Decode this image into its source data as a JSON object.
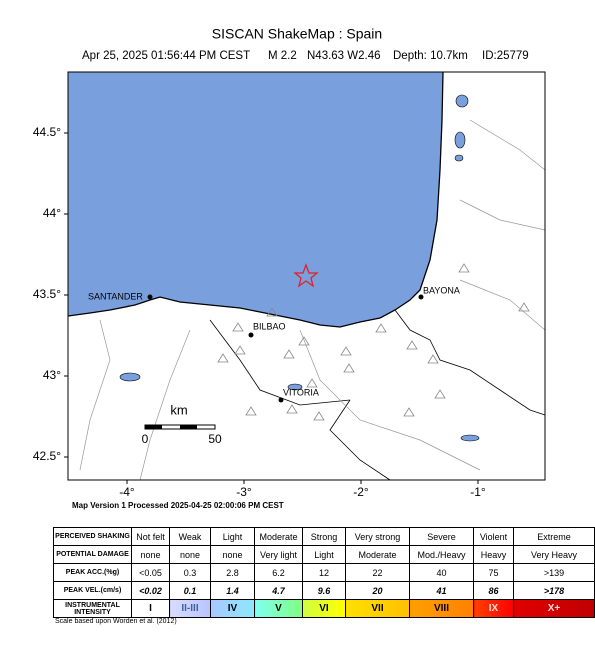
{
  "header": {
    "title": "SISCAN ShakeMap : Spain",
    "subtitle": [
      "Apr 25, 2025 01:56:44 PM CEST",
      "M 2.2",
      "N43.63 W2.46",
      "Depth: 10.7km",
      "ID:25779"
    ]
  },
  "map": {
    "lat_ticks": [
      "44.5°",
      "44°",
      "43.5°",
      "43°",
      "42.5°"
    ],
    "lon_ticks": [
      "-4°",
      "-3°",
      "-2°",
      "-1°"
    ],
    "places": [
      "SANTANDER",
      "BILBAO",
      "BAYONA",
      "VITORIA"
    ],
    "scale": {
      "unit": "km",
      "ticks": [
        "0",
        "50"
      ]
    },
    "footer": "Map Version 1 Processed 2025-04-25 02:00:06 PM CEST"
  },
  "table": {
    "rows": [
      {
        "label": "PERCEIVED SHAKING",
        "cells": [
          "Not felt",
          "Weak",
          "Light",
          "Moderate",
          "Strong",
          "Very strong",
          "Severe",
          "Violent",
          "Extreme"
        ]
      },
      {
        "label": "POTENTIAL DAMAGE",
        "cells": [
          "none",
          "none",
          "none",
          "Very light",
          "Light",
          "Moderate",
          "Mod./Heavy",
          "Heavy",
          "Very Heavy"
        ]
      },
      {
        "label": "PEAK ACC.(%g)",
        "cells": [
          "<0.05",
          "0.3",
          "2.8",
          "6.2",
          "12",
          "22",
          "40",
          "75",
          ">139"
        ]
      },
      {
        "label": "PEAK VEL.(cm/s)",
        "cells": [
          "<0.02",
          "0.1",
          "1.4",
          "4.7",
          "9.6",
          "20",
          "41",
          "86",
          ">178"
        ]
      },
      {
        "label": "INSTRUMENTAL INTENSITY",
        "cells": [
          "I",
          "II-III",
          "IV",
          "V",
          "VI",
          "VII",
          "VIII",
          "IX",
          "X+"
        ]
      }
    ],
    "note": "Scale based upon Worden et al. (2012)"
  }
}
